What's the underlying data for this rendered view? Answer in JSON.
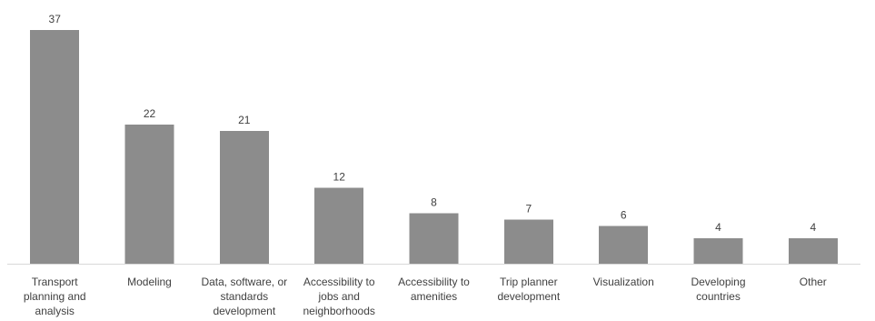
{
  "chart_data": {
    "type": "bar",
    "categories": [
      [
        "Transport",
        "planning and",
        "analysis"
      ],
      [
        "Modeling"
      ],
      [
        "Data, software, or",
        "standards",
        "development"
      ],
      [
        "Accessibility to",
        "jobs and",
        "neighborhoods"
      ],
      [
        "Accessibility to",
        "amenities"
      ],
      [
        "Trip planner",
        "development"
      ],
      [
        "Visualization"
      ],
      [
        "Developing",
        "countries"
      ],
      [
        "Other"
      ]
    ],
    "values": [
      37,
      22,
      21,
      12,
      8,
      7,
      6,
      4,
      4
    ],
    "ylim": [
      0,
      37
    ],
    "grid": false,
    "legend": "none",
    "colors": {
      "bar": "#8c8c8c",
      "axis": "#d9d9d9",
      "text": "#404040"
    }
  }
}
